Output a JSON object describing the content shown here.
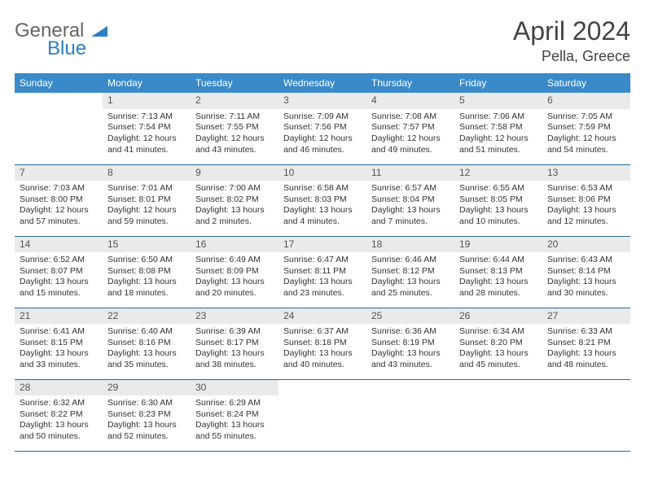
{
  "logo": {
    "line1": "General",
    "line2": "Blue"
  },
  "title": {
    "month": "April 2024",
    "location": "Pella, Greece"
  },
  "colors": {
    "header_bg": "#3a8ac9",
    "header_fg": "#ffffff",
    "daynum_bg": "#e9eaeb",
    "row_border": "#2b6aa0"
  },
  "weekdays": [
    "Sunday",
    "Monday",
    "Tuesday",
    "Wednesday",
    "Thursday",
    "Friday",
    "Saturday"
  ],
  "weeks": [
    [
      null,
      {
        "n": "1",
        "sr": "Sunrise: 7:13 AM",
        "ss": "Sunset: 7:54 PM",
        "d1": "Daylight: 12 hours",
        "d2": "and 41 minutes."
      },
      {
        "n": "2",
        "sr": "Sunrise: 7:11 AM",
        "ss": "Sunset: 7:55 PM",
        "d1": "Daylight: 12 hours",
        "d2": "and 43 minutes."
      },
      {
        "n": "3",
        "sr": "Sunrise: 7:09 AM",
        "ss": "Sunset: 7:56 PM",
        "d1": "Daylight: 12 hours",
        "d2": "and 46 minutes."
      },
      {
        "n": "4",
        "sr": "Sunrise: 7:08 AM",
        "ss": "Sunset: 7:57 PM",
        "d1": "Daylight: 12 hours",
        "d2": "and 49 minutes."
      },
      {
        "n": "5",
        "sr": "Sunrise: 7:06 AM",
        "ss": "Sunset: 7:58 PM",
        "d1": "Daylight: 12 hours",
        "d2": "and 51 minutes."
      },
      {
        "n": "6",
        "sr": "Sunrise: 7:05 AM",
        "ss": "Sunset: 7:59 PM",
        "d1": "Daylight: 12 hours",
        "d2": "and 54 minutes."
      }
    ],
    [
      {
        "n": "7",
        "sr": "Sunrise: 7:03 AM",
        "ss": "Sunset: 8:00 PM",
        "d1": "Daylight: 12 hours",
        "d2": "and 57 minutes."
      },
      {
        "n": "8",
        "sr": "Sunrise: 7:01 AM",
        "ss": "Sunset: 8:01 PM",
        "d1": "Daylight: 12 hours",
        "d2": "and 59 minutes."
      },
      {
        "n": "9",
        "sr": "Sunrise: 7:00 AM",
        "ss": "Sunset: 8:02 PM",
        "d1": "Daylight: 13 hours",
        "d2": "and 2 minutes."
      },
      {
        "n": "10",
        "sr": "Sunrise: 6:58 AM",
        "ss": "Sunset: 8:03 PM",
        "d1": "Daylight: 13 hours",
        "d2": "and 4 minutes."
      },
      {
        "n": "11",
        "sr": "Sunrise: 6:57 AM",
        "ss": "Sunset: 8:04 PM",
        "d1": "Daylight: 13 hours",
        "d2": "and 7 minutes."
      },
      {
        "n": "12",
        "sr": "Sunrise: 6:55 AM",
        "ss": "Sunset: 8:05 PM",
        "d1": "Daylight: 13 hours",
        "d2": "and 10 minutes."
      },
      {
        "n": "13",
        "sr": "Sunrise: 6:53 AM",
        "ss": "Sunset: 8:06 PM",
        "d1": "Daylight: 13 hours",
        "d2": "and 12 minutes."
      }
    ],
    [
      {
        "n": "14",
        "sr": "Sunrise: 6:52 AM",
        "ss": "Sunset: 8:07 PM",
        "d1": "Daylight: 13 hours",
        "d2": "and 15 minutes."
      },
      {
        "n": "15",
        "sr": "Sunrise: 6:50 AM",
        "ss": "Sunset: 8:08 PM",
        "d1": "Daylight: 13 hours",
        "d2": "and 18 minutes."
      },
      {
        "n": "16",
        "sr": "Sunrise: 6:49 AM",
        "ss": "Sunset: 8:09 PM",
        "d1": "Daylight: 13 hours",
        "d2": "and 20 minutes."
      },
      {
        "n": "17",
        "sr": "Sunrise: 6:47 AM",
        "ss": "Sunset: 8:11 PM",
        "d1": "Daylight: 13 hours",
        "d2": "and 23 minutes."
      },
      {
        "n": "18",
        "sr": "Sunrise: 6:46 AM",
        "ss": "Sunset: 8:12 PM",
        "d1": "Daylight: 13 hours",
        "d2": "and 25 minutes."
      },
      {
        "n": "19",
        "sr": "Sunrise: 6:44 AM",
        "ss": "Sunset: 8:13 PM",
        "d1": "Daylight: 13 hours",
        "d2": "and 28 minutes."
      },
      {
        "n": "20",
        "sr": "Sunrise: 6:43 AM",
        "ss": "Sunset: 8:14 PM",
        "d1": "Daylight: 13 hours",
        "d2": "and 30 minutes."
      }
    ],
    [
      {
        "n": "21",
        "sr": "Sunrise: 6:41 AM",
        "ss": "Sunset: 8:15 PM",
        "d1": "Daylight: 13 hours",
        "d2": "and 33 minutes."
      },
      {
        "n": "22",
        "sr": "Sunrise: 6:40 AM",
        "ss": "Sunset: 8:16 PM",
        "d1": "Daylight: 13 hours",
        "d2": "and 35 minutes."
      },
      {
        "n": "23",
        "sr": "Sunrise: 6:39 AM",
        "ss": "Sunset: 8:17 PM",
        "d1": "Daylight: 13 hours",
        "d2": "and 38 minutes."
      },
      {
        "n": "24",
        "sr": "Sunrise: 6:37 AM",
        "ss": "Sunset: 8:18 PM",
        "d1": "Daylight: 13 hours",
        "d2": "and 40 minutes."
      },
      {
        "n": "25",
        "sr": "Sunrise: 6:36 AM",
        "ss": "Sunset: 8:19 PM",
        "d1": "Daylight: 13 hours",
        "d2": "and 43 minutes."
      },
      {
        "n": "26",
        "sr": "Sunrise: 6:34 AM",
        "ss": "Sunset: 8:20 PM",
        "d1": "Daylight: 13 hours",
        "d2": "and 45 minutes."
      },
      {
        "n": "27",
        "sr": "Sunrise: 6:33 AM",
        "ss": "Sunset: 8:21 PM",
        "d1": "Daylight: 13 hours",
        "d2": "and 48 minutes."
      }
    ],
    [
      {
        "n": "28",
        "sr": "Sunrise: 6:32 AM",
        "ss": "Sunset: 8:22 PM",
        "d1": "Daylight: 13 hours",
        "d2": "and 50 minutes."
      },
      {
        "n": "29",
        "sr": "Sunrise: 6:30 AM",
        "ss": "Sunset: 8:23 PM",
        "d1": "Daylight: 13 hours",
        "d2": "and 52 minutes."
      },
      {
        "n": "30",
        "sr": "Sunrise: 6:29 AM",
        "ss": "Sunset: 8:24 PM",
        "d1": "Daylight: 13 hours",
        "d2": "and 55 minutes."
      },
      null,
      null,
      null,
      null
    ]
  ]
}
